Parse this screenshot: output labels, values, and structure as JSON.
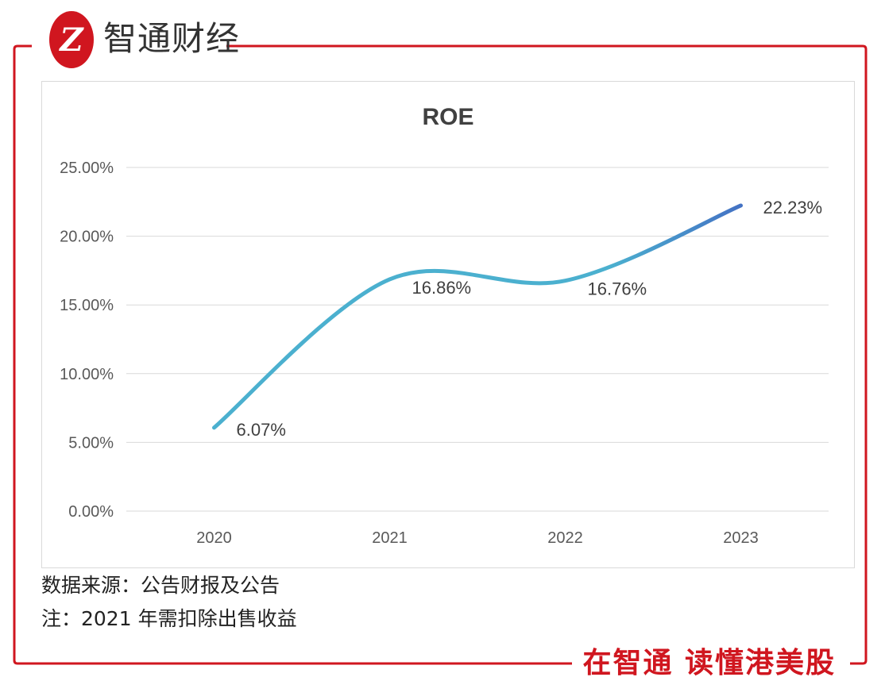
{
  "brand": {
    "logo_glyph": "Z",
    "name": "智通财经",
    "slogan": "在智通 读懂港美股",
    "accent": "#d0161f"
  },
  "chart_data": {
    "type": "line",
    "title": "ROE",
    "categories": [
      "2020",
      "2021",
      "2022",
      "2023"
    ],
    "series": [
      {
        "name": "ROE",
        "values": [
          6.07,
          16.86,
          16.76,
          22.23
        ]
      }
    ],
    "labels": [
      "6.07%",
      "16.86%",
      "16.76%",
      "22.23%"
    ],
    "y_ticks": [
      "0.00%",
      "5.00%",
      "10.00%",
      "15.00%",
      "20.00%",
      "25.00%"
    ],
    "ylim": [
      0,
      25
    ],
    "xlabel": "",
    "ylabel": "",
    "grid": true,
    "line_colors": [
      "#4bb0cf",
      "#4472c4"
    ]
  },
  "notes": {
    "source": "数据来源：公告财报及公告",
    "remark": "注：2021 年需扣除出售收益"
  }
}
